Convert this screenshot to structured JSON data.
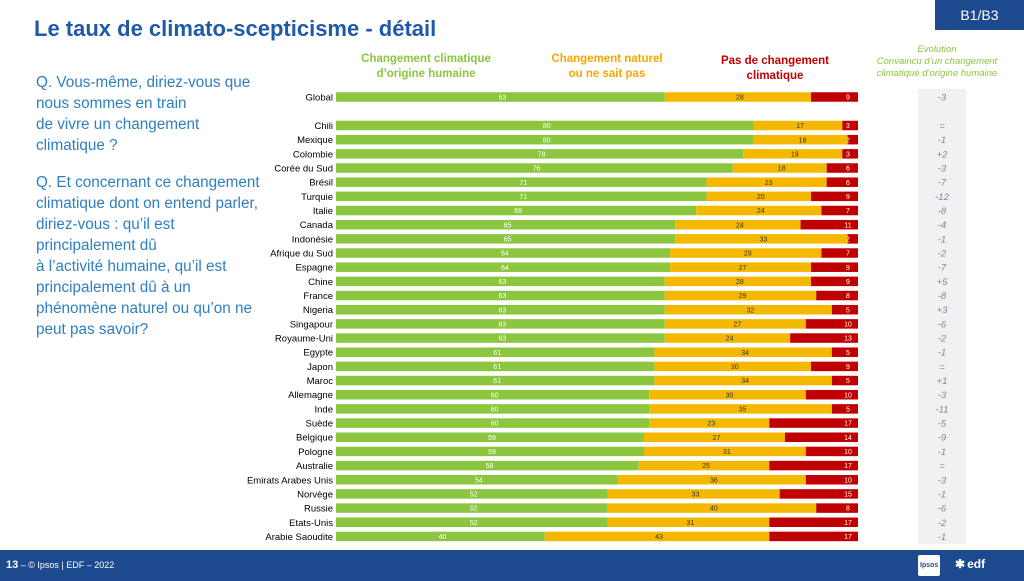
{
  "header": {
    "title": "Le taux de climato-scepticisme - détail",
    "code": "B1/B3"
  },
  "question": {
    "q1": "Q. Vous-même, diriez-vous que\nnous sommes en train\nde vivre un changement\nclimatique ?",
    "q2": "Q. Et concernant ce changement\nclimatique dont on entend parler,\ndiriez-vous : qu’il est\nprincipalement dû\nà l’activité humaine, qu’il est\nprincipalement dû à un\nphénomène naturel ou qu’on ne\npeut pas savoir?"
  },
  "legend": {
    "human": "Changement climatique\nd’origine humaine",
    "natural": "Changement naturel\nou ne sait pas",
    "none": "Pas de changement\nclimatique",
    "evolution": "Evolution\nConvaincu d’un changement\nclimatique d’origine humaine"
  },
  "colors": {
    "human": "#8cc63f",
    "natural": "#f5b800",
    "none": "#c00000",
    "brand": "#1d4a8f",
    "question": "#2e7fc1"
  },
  "footer": {
    "page": "13",
    "text": "– © Ipsos | EDF – 2022",
    "ipsos_logo": "Ipsos",
    "edf_logo": "edf"
  },
  "chart_data": {
    "type": "bar",
    "orientation": "horizontal",
    "stacked": true,
    "title": "Le taux de climato-scepticisme - détail",
    "xlim": [
      0,
      100
    ],
    "categories": [
      "Global",
      "Chili",
      "Mexique",
      "Colombie",
      "Corée du Sud",
      "Brésil",
      "Turquie",
      "Italie",
      "Canada",
      "Indonésie",
      "Afrique du Sud",
      "Espagne",
      "Chine",
      "France",
      "Nigeria",
      "Singapour",
      "Royaume-Uni",
      "Egypte",
      "Japon",
      "Maroc",
      "Allemagne",
      "Inde",
      "Suède",
      "Belgique",
      "Pologne",
      "Australie",
      "Emirats Arabes Unis",
      "Norvège",
      "Russie",
      "Etats-Unis",
      "Arabie Saoudite"
    ],
    "series": [
      {
        "name": "Changement climatique d’origine humaine",
        "values": [
          63,
          80,
          80,
          78,
          76,
          71,
          71,
          69,
          65,
          65,
          64,
          64,
          63,
          63,
          63,
          63,
          63,
          61,
          61,
          61,
          60,
          60,
          60,
          59,
          59,
          58,
          54,
          52,
          52,
          52,
          40
        ]
      },
      {
        "name": "Changement naturel ou ne sait pas",
        "values": [
          28,
          17,
          18,
          19,
          18,
          23,
          20,
          24,
          24,
          33,
          29,
          27,
          28,
          29,
          32,
          27,
          24,
          34,
          30,
          34,
          30,
          35,
          23,
          27,
          31,
          25,
          36,
          33,
          40,
          31,
          43
        ]
      },
      {
        "name": "Pas de changement climatique",
        "values": [
          9,
          3,
          2,
          3,
          6,
          6,
          9,
          7,
          11,
          2,
          7,
          9,
          9,
          8,
          5,
          10,
          13,
          5,
          9,
          5,
          10,
          5,
          17,
          14,
          10,
          17,
          10,
          15,
          8,
          17,
          17
        ]
      }
    ],
    "evolution": [
      "-3",
      "=",
      "-1",
      "+2",
      "-3",
      "-7",
      "-12",
      "-8",
      "-4",
      "-1",
      "-2",
      "-7",
      "+5",
      "-8",
      "+3",
      "-6",
      "-2",
      "-1",
      "=",
      "+1",
      "-3",
      "-11",
      "-5",
      "-9",
      "-1",
      "=",
      "-3",
      "-1",
      "-6",
      "-2",
      "-1"
    ]
  }
}
